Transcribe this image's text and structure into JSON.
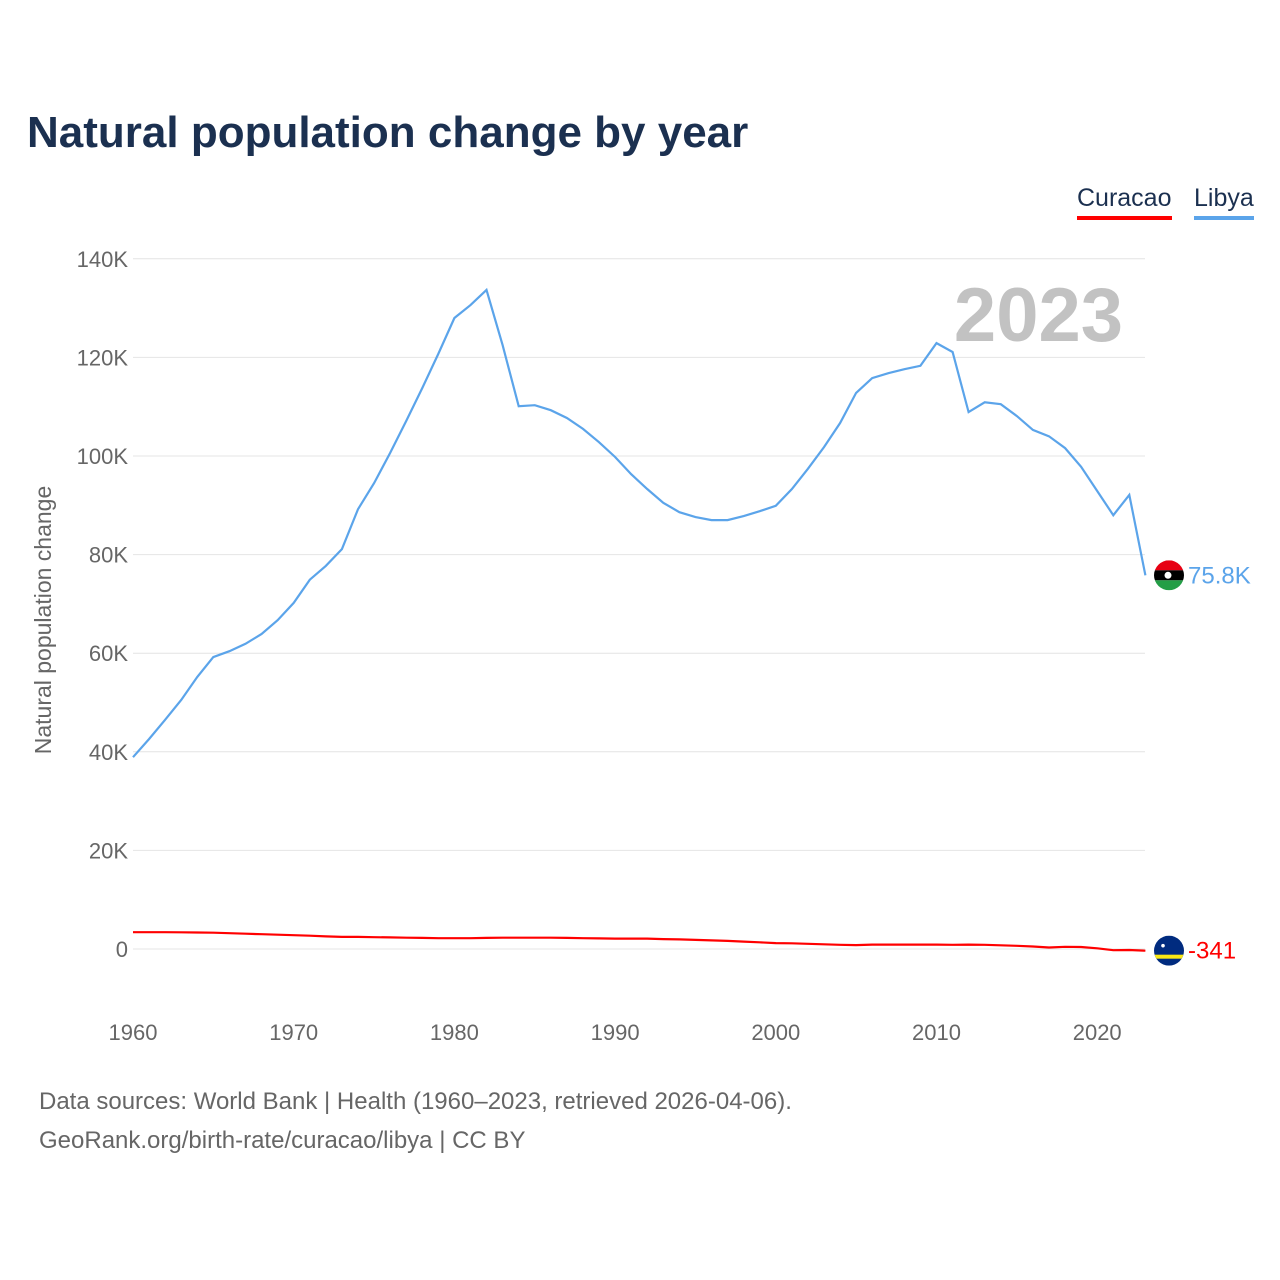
{
  "title": "Natural population change by year",
  "footer": {
    "line1": "Data sources: World Bank | Health (1960–2023, retrieved 2026-04-06).",
    "line2": "GeoRank.org/birth-rate/curacao/libya | CC BY"
  },
  "chart_data": {
    "type": "line",
    "title": "Natural population change by year",
    "ylabel": "Natural population change",
    "xlabel": "",
    "year_label": "2023",
    "xlim": [
      1960,
      2023
    ],
    "ylim": [
      -10000,
      140000
    ],
    "xticks": [
      {
        "v": 1960,
        "label": "1960"
      },
      {
        "v": 1970,
        "label": "1970"
      },
      {
        "v": 1980,
        "label": "1980"
      },
      {
        "v": 1990,
        "label": "1990"
      },
      {
        "v": 2000,
        "label": "2000"
      },
      {
        "v": 2010,
        "label": "2010"
      },
      {
        "v": 2020,
        "label": "2020"
      }
    ],
    "yticks": [
      {
        "v": 0,
        "label": "0"
      },
      {
        "v": 20000,
        "label": "20K"
      },
      {
        "v": 40000,
        "label": "40K"
      },
      {
        "v": 60000,
        "label": "60K"
      },
      {
        "v": 80000,
        "label": "80K"
      },
      {
        "v": 100000,
        "label": "100K"
      },
      {
        "v": 120000,
        "label": "120K"
      },
      {
        "v": 140000,
        "label": "140K"
      }
    ],
    "legend_position": "top-right",
    "x_start": 1960,
    "series": [
      {
        "name": "Curacao",
        "color": "#ff0000",
        "end_label": "-341",
        "flag": "curacao-flag",
        "values": [
          3400,
          3400,
          3400,
          3380,
          3350,
          3300,
          3200,
          3100,
          3000,
          2900,
          2800,
          2700,
          2550,
          2450,
          2450,
          2400,
          2350,
          2300,
          2250,
          2200,
          2200,
          2200,
          2250,
          2300,
          2300,
          2300,
          2300,
          2250,
          2200,
          2150,
          2100,
          2100,
          2100,
          2000,
          1950,
          1850,
          1750,
          1650,
          1500,
          1350,
          1200,
          1150,
          1050,
          950,
          850,
          800,
          900,
          900,
          900,
          900,
          900,
          850,
          900,
          850,
          750,
          650,
          500,
          300,
          450,
          400,
          150,
          -250,
          -200,
          -341
        ]
      },
      {
        "name": "Libya",
        "color": "#5ba4ea",
        "end_label": "75.8K",
        "flag": "libya-flag",
        "values": [
          38900,
          42600,
          46500,
          50500,
          55200,
          59200,
          60400,
          61900,
          63900,
          66700,
          70200,
          74900,
          77700,
          81100,
          89200,
          94500,
          100600,
          107100,
          113800,
          120700,
          128000,
          130600,
          133700,
          122500,
          110100,
          110300,
          109300,
          107700,
          105500,
          102800,
          99800,
          96300,
          93300,
          90500,
          88600,
          87600,
          87000,
          87000,
          87800,
          88800,
          89900,
          93300,
          97400,
          101800,
          106700,
          112800,
          115800,
          116800,
          117600,
          118300,
          122900,
          121100,
          108900,
          110900,
          110500,
          108100,
          105300,
          104000,
          101600,
          97800,
          92900,
          88000,
          92100,
          75800
        ]
      }
    ]
  }
}
